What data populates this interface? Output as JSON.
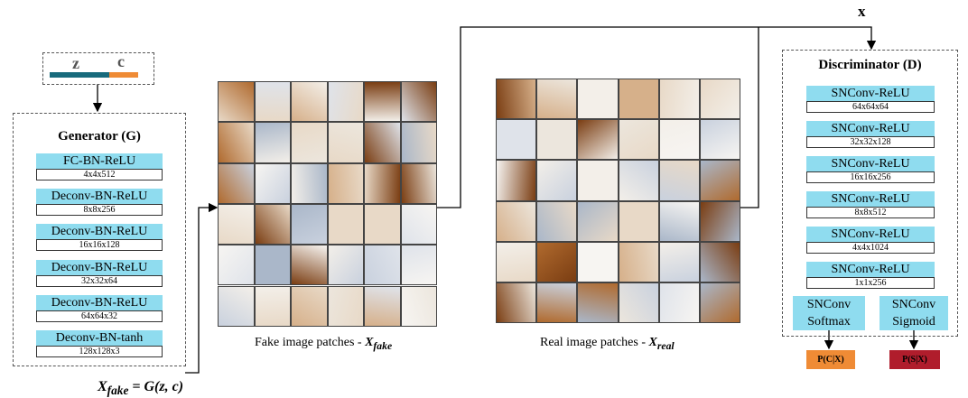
{
  "latent": {
    "z": "z",
    "c": "c"
  },
  "generator": {
    "title": "Generator (G)",
    "layers": [
      {
        "name": "FC-BN-ReLU",
        "shape": "4x4x512"
      },
      {
        "name": "Deconv-BN-ReLU",
        "shape": "8x8x256"
      },
      {
        "name": "Deconv-BN-ReLU",
        "shape": "16x16x128"
      },
      {
        "name": "Deconv-BN-ReLU",
        "shape": "32x32x64"
      },
      {
        "name": "Deconv-BN-ReLU",
        "shape": "64x64x32"
      },
      {
        "name": "Deconv-BN-tanh",
        "shape": "128x128x3"
      }
    ]
  },
  "generator_output": {
    "symbol": "X",
    "subscript": "fake",
    "text": "= G(z, c)"
  },
  "fake_caption": {
    "text": "Fake image patches - ",
    "symbol": "X",
    "subscript": "fake"
  },
  "real_caption": {
    "text": "Real image patches - ",
    "symbol": "X",
    "subscript": "real"
  },
  "real_input": "x",
  "discriminator": {
    "title": "Discriminator (D)",
    "layers": [
      {
        "name": "SNConv-ReLU",
        "shape": "64x64x64"
      },
      {
        "name": "SNConv-ReLU",
        "shape": "32x32x128"
      },
      {
        "name": "SNConv-ReLU",
        "shape": "16x16x256"
      },
      {
        "name": "SNConv-ReLU",
        "shape": "8x8x512"
      },
      {
        "name": "SNConv-ReLU",
        "shape": "4x4x1024"
      },
      {
        "name": "SNConv-ReLU",
        "shape": "1x1x256"
      }
    ],
    "heads": [
      {
        "line1": "SNConv",
        "line2": "Softmax",
        "output": "P(C|X)"
      },
      {
        "line1": "SNConv",
        "line2": "Sigmoid",
        "output": "P(S|X)"
      }
    ]
  }
}
